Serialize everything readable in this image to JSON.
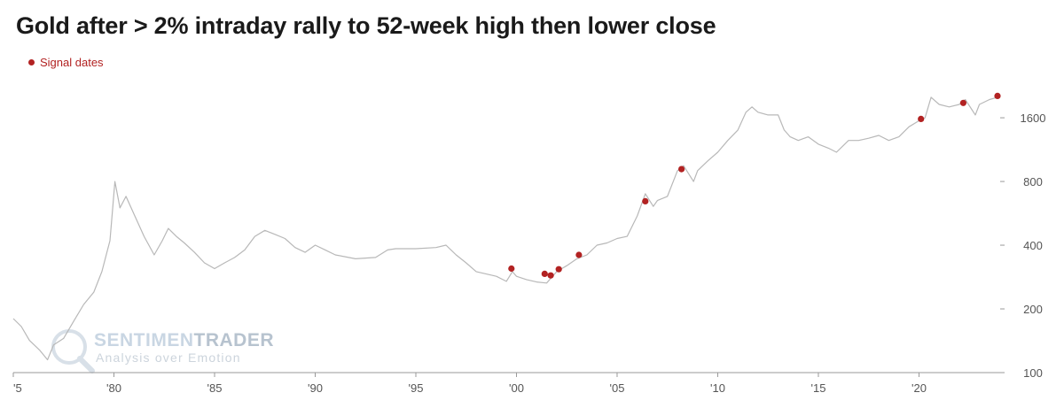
{
  "title": "Gold after > 2% intraday rally to 52-week high then lower close",
  "legend": {
    "label": "Signal dates",
    "color": "#b22222"
  },
  "watermark": {
    "main_light": "SENTIMEN",
    "main_dark": "TRADER",
    "sub": "Analysis over Emotion"
  },
  "chart_data": {
    "type": "line",
    "title": "Gold after > 2% intraday rally to 52-week high then lower close",
    "xlabel": "",
    "ylabel": "",
    "y_scale": "log",
    "ylim": [
      100,
      2200
    ],
    "xlim": [
      1975,
      2023.9
    ],
    "x_ticks": [
      {
        "x": 1975,
        "label": "'5"
      },
      {
        "x": 1980,
        "label": "'80"
      },
      {
        "x": 1985,
        "label": "'85"
      },
      {
        "x": 1990,
        "label": "'90"
      },
      {
        "x": 1995,
        "label": "'95"
      },
      {
        "x": 2000,
        "label": "'00"
      },
      {
        "x": 2005,
        "label": "'05"
      },
      {
        "x": 2010,
        "label": "'10"
      },
      {
        "x": 2015,
        "label": "'15"
      },
      {
        "x": 2020,
        "label": "'20"
      }
    ],
    "y_ticks": [
      100,
      200,
      400,
      800,
      1600
    ],
    "grid": false,
    "legend_position": "top-left",
    "series": [
      {
        "color": "#b8b8b8",
        "x": [
          1975.0,
          1975.4,
          1975.8,
          1976.3,
          1976.7,
          1977.0,
          1977.5,
          1978.0,
          1978.5,
          1979.0,
          1979.4,
          1979.8,
          1980.05,
          1980.3,
          1980.6,
          1981.0,
          1981.5,
          1982.0,
          1982.4,
          1982.7,
          1983.1,
          1983.5,
          1984.0,
          1984.5,
          1985.0,
          1985.5,
          1986.0,
          1986.5,
          1987.0,
          1987.5,
          1988.0,
          1988.5,
          1989.0,
          1989.5,
          1990.0,
          1990.5,
          1991.0,
          1992.0,
          1993.0,
          1993.6,
          1994.0,
          1995.0,
          1996.0,
          1996.5,
          1997.0,
          1997.5,
          1998.0,
          1999.0,
          1999.5,
          1999.8,
          2000.0,
          2000.5,
          2001.0,
          2001.5,
          2002.0,
          2002.5,
          2003.0,
          2003.5,
          2004.0,
          2004.5,
          2005.0,
          2005.5,
          2006.0,
          2006.4,
          2006.8,
          2007.0,
          2007.5,
          2008.0,
          2008.3,
          2008.8,
          2009.0,
          2009.5,
          2010.0,
          2010.5,
          2011.0,
          2011.4,
          2011.7,
          2012.0,
          2012.5,
          2013.0,
          2013.3,
          2013.6,
          2014.0,
          2014.5,
          2015.0,
          2015.5,
          2015.9,
          2016.5,
          2017.0,
          2017.5,
          2018.0,
          2018.5,
          2019.0,
          2019.5,
          2020.0,
          2020.3,
          2020.6,
          2021.0,
          2021.5,
          2022.0,
          2022.3,
          2022.8,
          2023.0,
          2023.5,
          2023.9
        ],
        "values": [
          180,
          165,
          142,
          128,
          115,
          135,
          145,
          175,
          210,
          240,
          300,
          420,
          800,
          600,
          680,
          560,
          440,
          360,
          420,
          480,
          440,
          410,
          370,
          330,
          310,
          330,
          350,
          380,
          440,
          470,
          450,
          430,
          390,
          370,
          400,
          380,
          360,
          345,
          350,
          380,
          385,
          385,
          390,
          400,
          360,
          330,
          300,
          285,
          270,
          300,
          285,
          275,
          268,
          265,
          300,
          320,
          345,
          360,
          400,
          410,
          430,
          440,
          550,
          700,
          610,
          650,
          680,
          900,
          950,
          800,
          900,
          1000,
          1100,
          1250,
          1400,
          1700,
          1800,
          1700,
          1650,
          1650,
          1400,
          1300,
          1250,
          1300,
          1200,
          1150,
          1100,
          1250,
          1250,
          1280,
          1320,
          1250,
          1300,
          1450,
          1550,
          1600,
          2000,
          1850,
          1800,
          1850,
          1950,
          1650,
          1850,
          1950,
          2000
        ]
      },
      {
        "name": "Signal dates",
        "type": "scatter",
        "color": "#b22222",
        "x": [
          1999.75,
          2001.4,
          2001.7,
          2002.1,
          2003.1,
          2006.4,
          2008.2,
          2020.1,
          2022.2,
          2023.9
        ],
        "values": [
          310,
          293,
          288,
          308,
          360,
          645,
          915,
          1580,
          1880,
          2030
        ]
      }
    ]
  }
}
